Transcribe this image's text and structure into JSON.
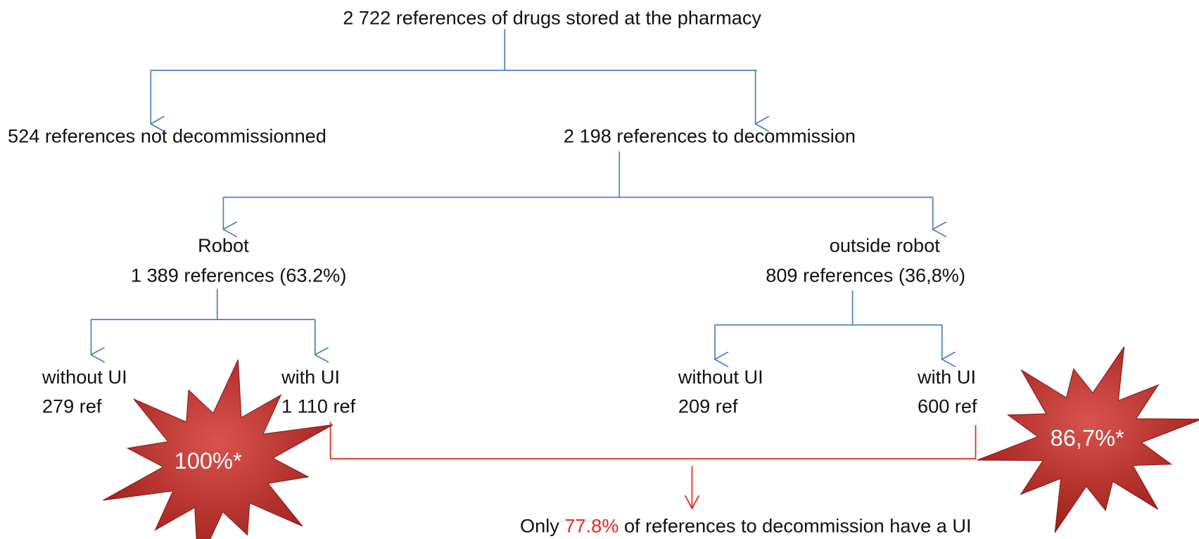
{
  "root": "2 722 references of drugs stored at the pharmacy",
  "left": "524 references not decommissionned",
  "right": "2 198 references to decommission",
  "robot": {
    "title": "Robot",
    "count": "1 389 references (63.2%)"
  },
  "outside": {
    "title": "outside robot",
    "count": "809 references (36,8%)"
  },
  "leaves": [
    {
      "label": "without UI",
      "count": "279 ref"
    },
    {
      "label": "with UI",
      "count": "1 110 ref"
    },
    {
      "label": "without UI",
      "count": "209 ref"
    },
    {
      "label": "with UI",
      "count": "600 ref"
    }
  ],
  "bursts": [
    "100%*",
    "86,7%*"
  ],
  "conclusion": {
    "before": "Only ",
    "highlight": "77.8%",
    "after": " of references to decommission have a UI"
  }
}
